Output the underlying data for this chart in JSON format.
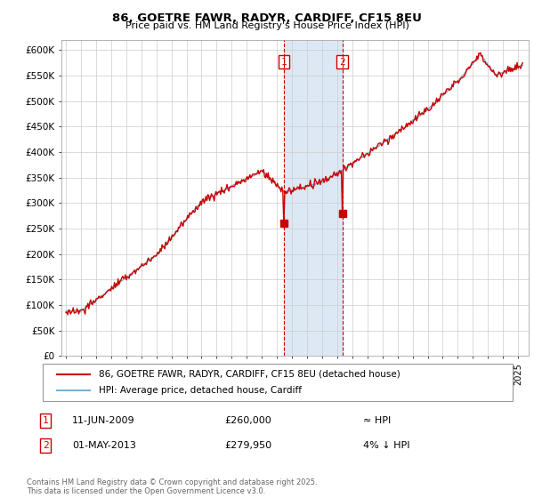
{
  "title1": "86, GOETRE FAWR, RADYR, CARDIFF, CF15 8EU",
  "title2": "Price paid vs. HM Land Registry's House Price Index (HPI)",
  "ylim": [
    0,
    620000
  ],
  "yticks": [
    0,
    50000,
    100000,
    150000,
    200000,
    250000,
    300000,
    350000,
    400000,
    450000,
    500000,
    550000,
    600000
  ],
  "ytick_labels": [
    "£0",
    "£50K",
    "£100K",
    "£150K",
    "£200K",
    "£250K",
    "£300K",
    "£350K",
    "£400K",
    "£450K",
    "£500K",
    "£550K",
    "£600K"
  ],
  "legend1": "86, GOETRE FAWR, RADYR, CARDIFF, CF15 8EU (detached house)",
  "legend2": "HPI: Average price, detached house, Cardiff",
  "property_color": "#cc0000",
  "hpi_color": "#7bafd4",
  "transaction1_x": 2009.45,
  "transaction1_price": 260000,
  "transaction2_x": 2013.33,
  "transaction2_price": 279950,
  "transaction1_note": "≈ HPI",
  "transaction2_note": "4% ↓ HPI",
  "shade_color": "#dce9f5",
  "vline_color": "#cc0000",
  "background_color": "#ffffff",
  "grid_color": "#cccccc",
  "footnote": "Contains HM Land Registry data © Crown copyright and database right 2025.\nThis data is licensed under the Open Government Licence v3.0."
}
